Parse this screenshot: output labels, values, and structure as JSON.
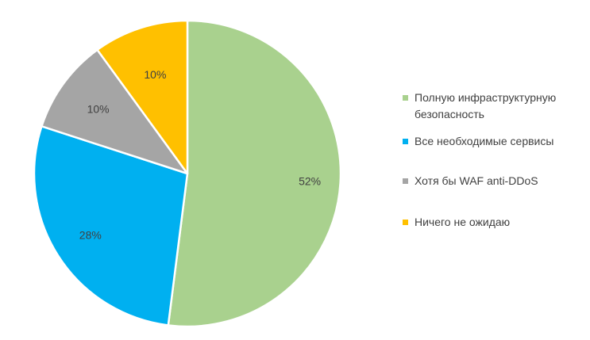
{
  "chart_data": {
    "type": "pie",
    "categories": [
      "Полную инфраструктурную безопасность",
      "Все необходимые сервисы",
      "Хотя бы WAF anti-DDoS",
      "Ничего не ожидаю"
    ],
    "values": [
      52,
      28,
      10,
      10
    ],
    "labels": [
      "52%",
      "28%",
      "10%",
      "10%"
    ],
    "colors": [
      "#a9d18e",
      "#00b0f0",
      "#a5a5a5",
      "#ffc000"
    ],
    "legend_position": "right",
    "start_angle_deg": 0,
    "direction": "clockwise"
  }
}
